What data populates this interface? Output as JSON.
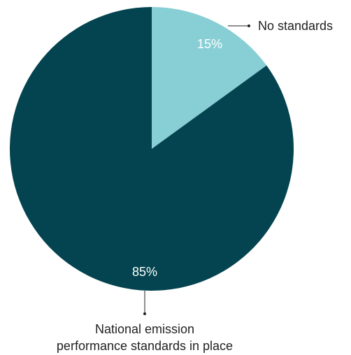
{
  "chart_data": {
    "type": "pie",
    "title": "",
    "slices": [
      {
        "label": "No standards",
        "value": 15,
        "value_label": "15%",
        "color": "#88cfd5"
      },
      {
        "label_lines": [
          "National emission",
          "performance standards in place"
        ],
        "value": 85,
        "value_label": "85%",
        "color": "#034450"
      }
    ],
    "start_angle_deg": 0,
    "direction": "clockwise",
    "legend": "none",
    "label_style": "callout"
  }
}
